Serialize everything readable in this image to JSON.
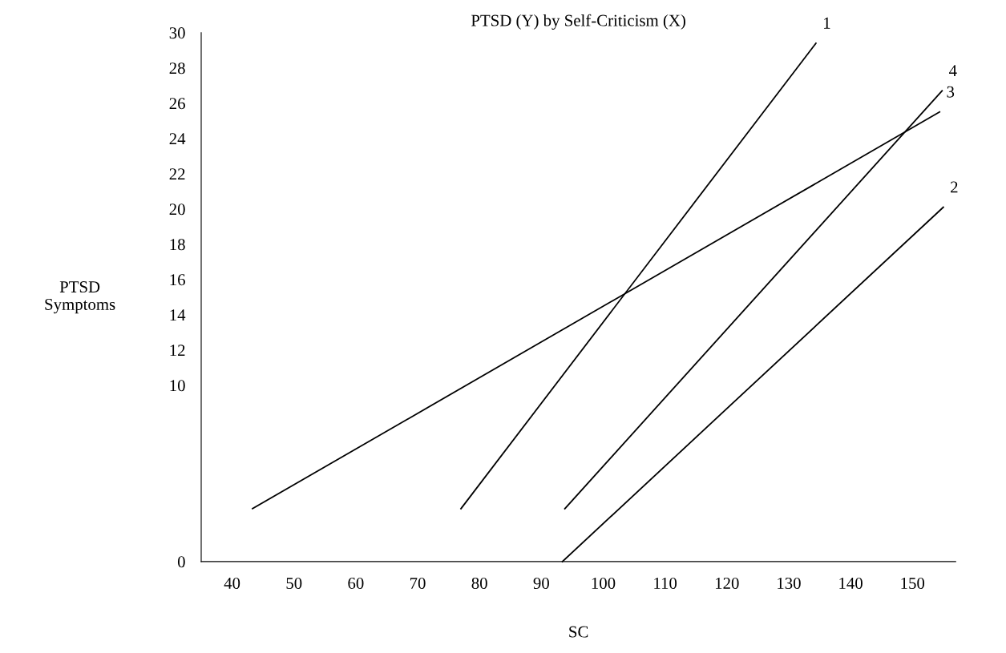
{
  "chart_data": {
    "type": "line",
    "title": "PTSD (Y) by Self-Criticism (X)",
    "xlabel": "SC",
    "ylabel": "PTSD\nSymptoms",
    "series": [
      {
        "name": "1",
        "color": "#000000",
        "x": [
          77,
          134.4
        ],
        "values": [
          3,
          29.4
        ]
      },
      {
        "name": "2",
        "color": "#000000",
        "x": [
          93.4,
          155
        ],
        "values": [
          0,
          20.1
        ]
      },
      {
        "name": "3",
        "color": "#000000",
        "x": [
          43.3,
          154.4
        ],
        "values": [
          3,
          25.5
        ]
      },
      {
        "name": "4",
        "color": "#000000",
        "x": [
          93.8,
          154.8
        ],
        "values": [
          3,
          26.7
        ]
      }
    ],
    "xlim": [
      35,
      157
    ],
    "xticks": [
      40,
      50,
      60,
      70,
      80,
      90,
      100,
      110,
      120,
      130,
      140,
      150
    ],
    "ylim": [
      0,
      30
    ],
    "yticks": [
      0,
      10,
      12,
      14,
      16,
      18,
      20,
      22,
      24,
      26,
      28,
      30
    ],
    "grid": false,
    "legend": false,
    "marker": "none",
    "line_style": "solid"
  }
}
